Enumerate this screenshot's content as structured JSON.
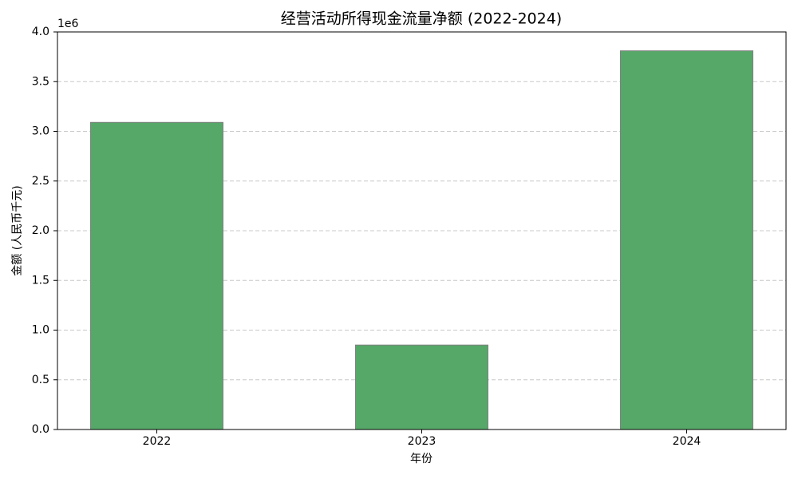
{
  "chart_data": {
    "type": "bar",
    "title": "经营活动所得现金流量净额 (2022-2024)",
    "x_label": "年份",
    "y_label": "金额 (人民币千元)",
    "y_offset_label": "1e6",
    "categories": [
      "2022",
      "2023",
      "2024"
    ],
    "values": [
      3.09,
      0.85,
      3.81
    ],
    "color": "#55a868",
    "edge_color": "#808080",
    "ylim": [
      0,
      4
    ],
    "yticks": [
      {
        "value": 0,
        "label": "0.0"
      },
      {
        "value": 0.5,
        "label": "0.5"
      },
      {
        "value": 1,
        "label": "1.0"
      },
      {
        "value": 1.5,
        "label": "1.5"
      },
      {
        "value": 2,
        "label": "2.0"
      },
      {
        "value": 2.5,
        "label": "2.5"
      },
      {
        "value": 3,
        "label": "3.0"
      },
      {
        "value": 3.5,
        "label": "3.5"
      },
      {
        "value": 4,
        "label": "4.0"
      }
    ],
    "grid": true
  }
}
